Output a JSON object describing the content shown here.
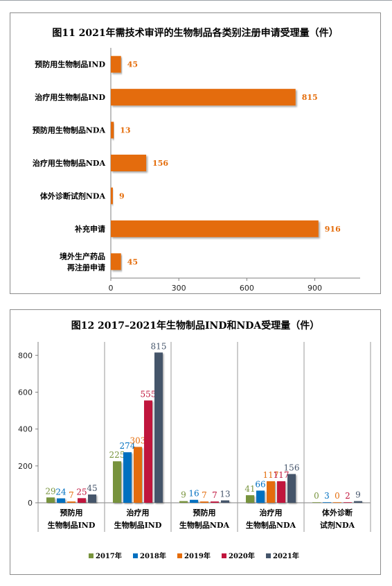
{
  "chart_data": [
    {
      "type": "bar",
      "orientation": "horizontal",
      "title": "图11 2021年需技术审评的生物制品各类别注册申请受理量（件）",
      "categories": [
        [
          "预防用生物制品IND"
        ],
        [
          "治疗用生物制品IND"
        ],
        [
          "预防用生物制品NDA"
        ],
        [
          "治疗用生物制品NDA"
        ],
        [
          "体外诊断试剂NDA"
        ],
        [
          "补充申请"
        ],
        [
          "境外生产药品",
          "再注册申请"
        ]
      ],
      "values": [
        45,
        815,
        13,
        156,
        9,
        916,
        45
      ],
      "xticks": [
        "0",
        "300",
        "600",
        "900"
      ],
      "xlim": [
        0,
        1100
      ],
      "grid": false,
      "color": "#E46C0A"
    },
    {
      "type": "bar",
      "title": "图12  2017–2021年生物制品IND和NDA受理量（件）",
      "categories": [
        [
          "预防用",
          "生物制品IND"
        ],
        [
          "治疗用",
          "生物制品IND"
        ],
        [
          "预防用",
          "生物制品NDA"
        ],
        [
          "治疗用",
          "生物制品NDA"
        ],
        [
          "体外诊断",
          "试剂NDA"
        ]
      ],
      "series": [
        {
          "name": "2017年",
          "color": "#77933C",
          "values": [
            29,
            225,
            9,
            41,
            0
          ]
        },
        {
          "name": "2018年",
          "color": "#0070C0",
          "values": [
            24,
            274,
            16,
            66,
            3
          ]
        },
        {
          "name": "2019年",
          "color": "#E46C0A",
          "values": [
            7,
            303,
            7,
            117,
            0
          ]
        },
        {
          "name": "2020年",
          "color": "#C0143C",
          "values": [
            25,
            555,
            7,
            117,
            2
          ]
        },
        {
          "name": "2021年",
          "color": "#44546A",
          "values": [
            45,
            815,
            13,
            156,
            9
          ]
        }
      ],
      "yticks": [
        "0",
        "200",
        "400",
        "600",
        "800"
      ],
      "ylim": [
        0,
        820
      ],
      "legend": "bottom",
      "grid": false
    }
  ]
}
